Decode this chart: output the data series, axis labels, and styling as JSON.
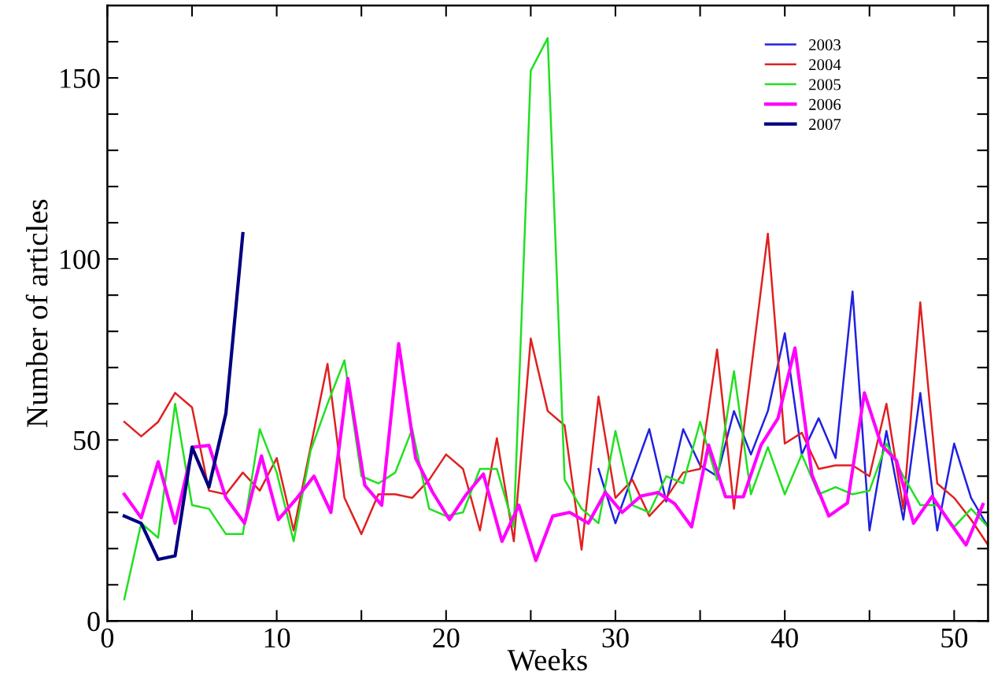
{
  "chart_data": {
    "type": "line",
    "xlabel": "Weeks",
    "ylabel": "Number of articles",
    "xlim": [
      0,
      52
    ],
    "ylim": [
      0,
      170
    ],
    "xticks": [
      0,
      {
        "value": 5,
        "label": null
      },
      10,
      {
        "value": 15,
        "label": null
      },
      20,
      {
        "value": 25,
        "label": null
      },
      30,
      {
        "value": 35,
        "label": null
      },
      40,
      {
        "value": 45,
        "label": null
      },
      50
    ],
    "yticks": [
      0,
      {
        "value": 10,
        "label": null
      },
      {
        "value": 20,
        "label": null
      },
      {
        "value": 30,
        "label": null
      },
      {
        "value": 40,
        "label": null
      },
      50,
      {
        "value": 60,
        "label": null
      },
      {
        "value": 70,
        "label": null
      },
      {
        "value": 80,
        "label": null
      },
      {
        "value": 90,
        "label": null
      },
      100,
      {
        "value": 110,
        "label": null
      },
      {
        "value": 120,
        "label": null
      },
      {
        "value": 130,
        "label": null
      },
      {
        "value": 140,
        "label": null
      },
      150,
      {
        "value": 160,
        "label": null
      }
    ],
    "grid": false,
    "legend": "top right",
    "marker": "none",
    "line_style": "solid",
    "series": [
      {
        "name": "2003",
        "color": "#2020e0",
        "x": [
          29,
          30,
          31,
          32,
          33,
          34,
          35,
          36,
          37,
          38,
          39,
          40,
          41,
          42,
          43,
          44,
          45,
          46,
          47,
          48,
          49,
          50,
          51,
          52
        ],
        "values": [
          42,
          27,
          40,
          53,
          33,
          53,
          43,
          40,
          58,
          46,
          58,
          79.5,
          46,
          56,
          45,
          91,
          25,
          52.5,
          28,
          63,
          25,
          49,
          34,
          26
        ]
      },
      {
        "name": "2004",
        "color": "#e02020",
        "x": [
          1,
          2,
          3,
          4,
          5,
          6,
          7,
          8,
          9,
          10,
          11,
          12,
          13,
          14,
          15,
          16,
          17,
          18,
          19,
          20,
          21,
          22,
          23,
          24,
          25,
          26,
          27,
          28,
          29,
          30,
          31,
          32,
          33,
          34,
          35,
          36,
          37,
          38,
          39,
          40,
          41,
          42,
          43,
          44,
          45,
          46,
          47,
          48,
          49,
          50,
          51,
          52
        ],
        "values": [
          55,
          51,
          55,
          63,
          59,
          36,
          35,
          41,
          36,
          45,
          25,
          48,
          71,
          34,
          24,
          35,
          35,
          34,
          39,
          46,
          42,
          25,
          50.5,
          22,
          78,
          58,
          54,
          19.7,
          62,
          34,
          39,
          29,
          34,
          41,
          42,
          75,
          31,
          69,
          107,
          49,
          52,
          42,
          43,
          43,
          40,
          60,
          31,
          88,
          38,
          34,
          28,
          21
        ]
      },
      {
        "name": "2005",
        "color": "#20e020",
        "x": [
          1,
          2,
          3,
          4,
          5,
          6,
          7,
          8,
          9,
          10,
          11,
          12,
          13,
          14,
          15,
          16,
          17,
          18,
          19,
          20,
          21,
          22,
          23,
          24,
          25,
          26,
          27,
          28,
          29,
          30,
          31,
          32,
          33,
          34,
          35,
          36,
          37,
          38,
          39,
          40,
          41,
          42,
          43,
          44,
          45,
          46,
          47,
          48,
          49,
          50,
          51,
          52
        ],
        "values": [
          6,
          27,
          23,
          60,
          32,
          31,
          24,
          24,
          53,
          41,
          22,
          47,
          60,
          72,
          40,
          38,
          41,
          53,
          31,
          29,
          30,
          42,
          42,
          26,
          152,
          161,
          39,
          31,
          27,
          52.5,
          32,
          30,
          40,
          38,
          55,
          39,
          69,
          35,
          48,
          35,
          46,
          35,
          37,
          35,
          36,
          49,
          40,
          32,
          32,
          26,
          31,
          26
        ]
      },
      {
        "name": "2006",
        "color": "#ff00ff",
        "x": [
          1.0,
          2.0,
          3.0,
          4.0,
          5.05,
          6.0,
          7.0,
          8.1,
          9.1,
          10.1,
          11.2,
          12.2,
          13.2,
          14.2,
          15.2,
          16.2,
          17.2,
          18.2,
          19.2,
          20.2,
          21.2,
          22.2,
          23.3,
          24.3,
          25.3,
          26.3,
          27.3,
          28.4,
          29.4,
          30.4,
          31.5,
          32.5,
          33.5,
          34.5,
          35.5,
          36.5,
          37.55,
          38.6,
          39.6,
          40.6,
          41.6,
          42.6,
          43.7,
          44.7,
          45.7,
          46.6,
          47.6,
          48.7,
          49.7,
          50.7,
          51.7
        ],
        "values": [
          35,
          28.5,
          44,
          27,
          48,
          48.5,
          34,
          27,
          45.6,
          28,
          34,
          40,
          30,
          67,
          37.5,
          32,
          76.6,
          45,
          35.6,
          28,
          35,
          40.6,
          22,
          32,
          16.7,
          29,
          30,
          27,
          35.5,
          30,
          34.5,
          35.5,
          32.4,
          26,
          48.6,
          34.3,
          34.3,
          48.6,
          56,
          75.4,
          40.4,
          29,
          32.6,
          63,
          48.6,
          44.3,
          27,
          34.4,
          27.5,
          21,
          32.2
        ]
      },
      {
        "name": "2007",
        "color": "#000080",
        "x": [
          1,
          2,
          3,
          4,
          5,
          6,
          7,
          8
        ],
        "values": [
          29,
          27,
          17,
          18,
          48,
          37,
          57.4,
          107
        ]
      }
    ]
  }
}
